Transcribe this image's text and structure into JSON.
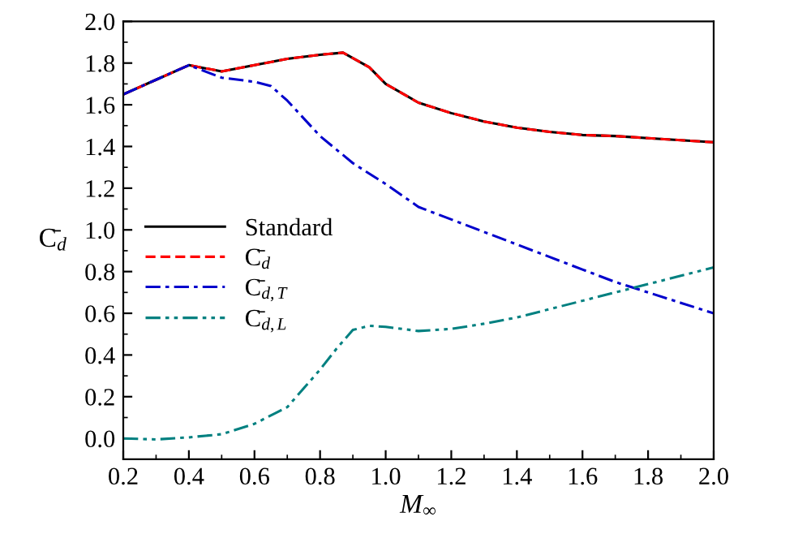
{
  "chart_data": {
    "type": "line",
    "xlabel": "M$_{∞}$",
    "ylabel": "C̄$_{d}$",
    "xlim": [
      0.2,
      2.0
    ],
    "xticks": [
      0.2,
      0.4,
      0.6,
      0.8,
      {
        "value": 1,
        "label": "1.0"
      },
      1.2,
      1.4,
      1.6,
      1.8,
      {
        "value": 2,
        "label": "2.0"
      }
    ],
    "ylim": [
      -0.1,
      2.0
    ],
    "yticks": [
      {
        "value": 0,
        "label": "0.0"
      },
      0.2,
      0.4,
      0.6,
      0.8,
      {
        "value": 1,
        "label": "1.0"
      },
      1.2,
      1.4,
      1.6,
      1.8,
      {
        "value": 2,
        "label": "2.0"
      }
    ],
    "grid": false,
    "legend": "left",
    "marker": "none",
    "series": [
      {
        "name": "Standard",
        "color": "#000000",
        "line_style": "solid",
        "x": [
          0.2,
          0.3,
          0.4,
          0.5,
          0.6,
          0.7,
          0.8,
          0.87,
          0.95,
          1.0,
          1.1,
          1.2,
          1.3,
          1.4,
          1.5,
          1.6,
          1.7,
          1.8,
          1.9,
          2.0
        ],
        "values": [
          1.65,
          1.72,
          1.79,
          1.76,
          1.79,
          1.82,
          1.84,
          1.85,
          1.78,
          1.7,
          1.61,
          1.56,
          1.52,
          1.49,
          1.47,
          1.455,
          1.45,
          1.44,
          1.43,
          1.42
        ]
      },
      {
        "name": "C̄$_{d}$",
        "color": "#ff0000",
        "line_style": "dashed",
        "x": [
          0.2,
          0.3,
          0.4,
          0.5,
          0.6,
          0.7,
          0.8,
          0.87,
          0.95,
          1.0,
          1.1,
          1.2,
          1.3,
          1.4,
          1.5,
          1.6,
          1.7,
          1.8,
          1.9,
          2.0
        ],
        "values": [
          1.65,
          1.72,
          1.79,
          1.76,
          1.79,
          1.82,
          1.84,
          1.85,
          1.78,
          1.7,
          1.61,
          1.56,
          1.52,
          1.49,
          1.47,
          1.455,
          1.45,
          1.44,
          1.43,
          1.42
        ]
      },
      {
        "name": "C̄$_{d,T}$",
        "color": "#0000cc",
        "line_style": "dashdot",
        "x": [
          0.2,
          0.3,
          0.4,
          0.5,
          0.6,
          0.65,
          0.7,
          0.8,
          0.9,
          1.0,
          1.1,
          1.2,
          1.3,
          1.4,
          1.5,
          1.6,
          1.7,
          1.8,
          1.9,
          2.0
        ],
        "values": [
          1.65,
          1.72,
          1.79,
          1.73,
          1.71,
          1.69,
          1.62,
          1.45,
          1.32,
          1.22,
          1.11,
          1.05,
          0.99,
          0.93,
          0.87,
          0.81,
          0.75,
          0.7,
          0.65,
          0.6
        ]
      },
      {
        "name": "C̄$_{d,L}$",
        "color": "#008080",
        "line_style": "dashdotdot",
        "x": [
          0.2,
          0.3,
          0.4,
          0.5,
          0.6,
          0.7,
          0.8,
          0.85,
          0.9,
          0.95,
          1.0,
          1.1,
          1.2,
          1.3,
          1.4,
          1.5,
          1.6,
          1.7,
          1.8,
          1.9,
          2.0
        ],
        "values": [
          0.0,
          -0.005,
          0.005,
          0.02,
          0.07,
          0.15,
          0.33,
          0.43,
          0.52,
          0.54,
          0.535,
          0.515,
          0.525,
          0.55,
          0.58,
          0.62,
          0.66,
          0.7,
          0.74,
          0.78,
          0.82
        ]
      }
    ]
  }
}
